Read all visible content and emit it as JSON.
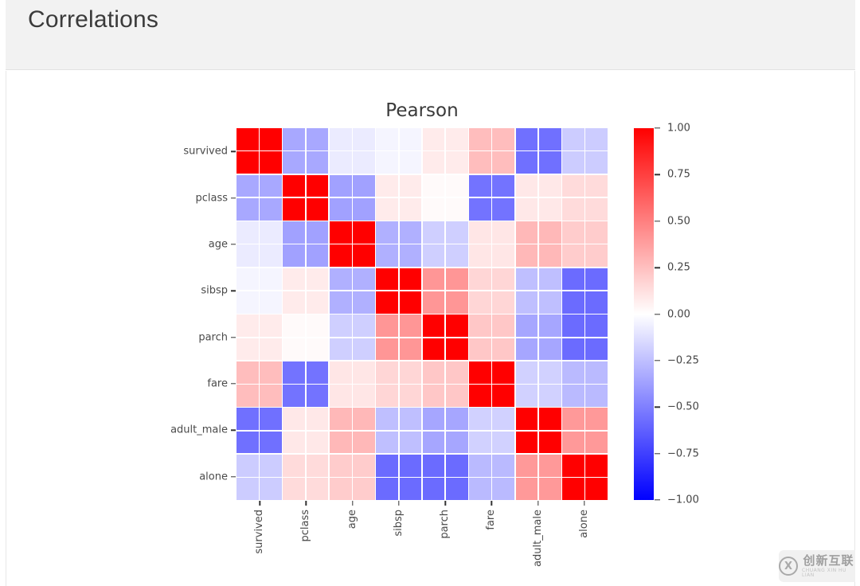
{
  "header": {
    "title": "Correlations"
  },
  "figure": {
    "title": "Pearson"
  },
  "chart_data": {
    "type": "heatmap",
    "title": "Pearson",
    "categories": [
      "survived",
      "pclass",
      "age",
      "sibsp",
      "parch",
      "fare",
      "adult_male",
      "alone"
    ],
    "matrix": [
      [
        1.0,
        -0.34,
        -0.08,
        -0.04,
        0.08,
        0.26,
        -0.56,
        -0.2
      ],
      [
        -0.34,
        1.0,
        -0.37,
        0.08,
        0.02,
        -0.55,
        0.09,
        0.14
      ],
      [
        -0.08,
        -0.37,
        1.0,
        -0.31,
        -0.19,
        0.1,
        0.28,
        0.2
      ],
      [
        -0.04,
        0.08,
        -0.31,
        1.0,
        0.41,
        0.16,
        -0.25,
        -0.58
      ],
      [
        0.08,
        0.02,
        -0.19,
        0.41,
        1.0,
        0.22,
        -0.35,
        -0.58
      ],
      [
        0.26,
        -0.55,
        0.1,
        0.16,
        0.22,
        1.0,
        -0.18,
        -0.27
      ],
      [
        -0.56,
        0.09,
        0.28,
        -0.25,
        -0.35,
        -0.18,
        1.0,
        0.4
      ],
      [
        -0.2,
        0.14,
        0.2,
        -0.58,
        -0.58,
        -0.27,
        0.4,
        1.0
      ]
    ],
    "vmin": -1,
    "vmax": 1,
    "colormap": "blue-white-red",
    "colorbar_ticks": [
      "1.00",
      "0.75",
      "0.50",
      "0.25",
      "0.00",
      "−0.25",
      "−0.50",
      "−0.75",
      "−1.00"
    ],
    "legend_position": "right",
    "grid": "white gridlines, each variable cell split 2x2"
  },
  "colors": {
    "positive_max": "#ff0000",
    "midpoint": "#ffffff",
    "negative_max": "#0000ff",
    "header_bg": "#f2f2f2",
    "title_text": "#3a3a3a",
    "axis_text": "#4a4a4a"
  },
  "watermark": {
    "cn": "创新互联",
    "en": "CHUANG XIN HU LIAN"
  }
}
